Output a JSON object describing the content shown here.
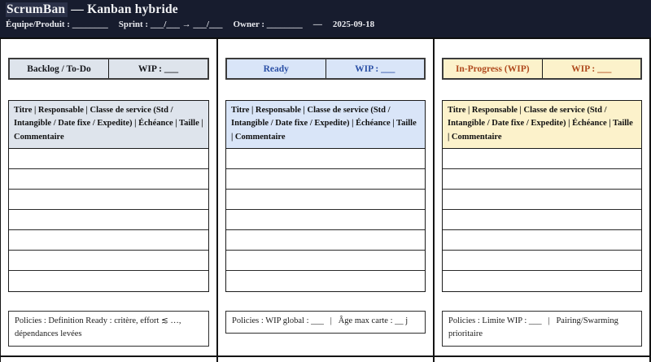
{
  "header": {
    "title_highlight": "ScrumBan",
    "title_rest": " — Kanban hybride",
    "meta_product": "Équipe/Produit : ________",
    "meta_sprint": "Sprint : ___/___ → ___/___",
    "meta_owner": "Owner : ________",
    "meta_dash": "—",
    "meta_date": "2025-09-18"
  },
  "columns": [
    {
      "title": "Backlog / To-Do",
      "wip": "WIP : ___",
      "table_header": "Titre | Responsable | Classe de service (Std / Intangible / Date fixe / Expedite) | Échéance | Taille | Commentaire",
      "empty_rows": 7,
      "policies": "Policies : Definition Ready : critère, effort ≲ …, dépendances levées",
      "colors": {
        "bg": "#dee4ec",
        "text": "#15171c"
      }
    },
    {
      "title": "Ready",
      "wip": "WIP : ___",
      "table_header": "Titre | Responsable | Classe de service (Std / Intangible / Date fixe / Expedite) | Échéance | Taille | Commentaire",
      "empty_rows": 7,
      "policies": "Policies : WIP global : ___   |   Âge max carte : __ j",
      "colors": {
        "bg": "#d9e5f8",
        "text": "#2b50a6"
      }
    },
    {
      "title": "In-Progress (WIP)",
      "wip": "WIP : ___",
      "table_header": "Titre | Responsable | Classe de service (Std / Intangible / Date fixe / Expedite) | Échéance | Taille | Commentaire",
      "empty_rows": 7,
      "policies": "Policies : Limite WIP : ___   |   Pairing/Swarming prioritaire",
      "colors": {
        "bg": "#fcf2cb",
        "text": "#b04a1e"
      }
    }
  ]
}
